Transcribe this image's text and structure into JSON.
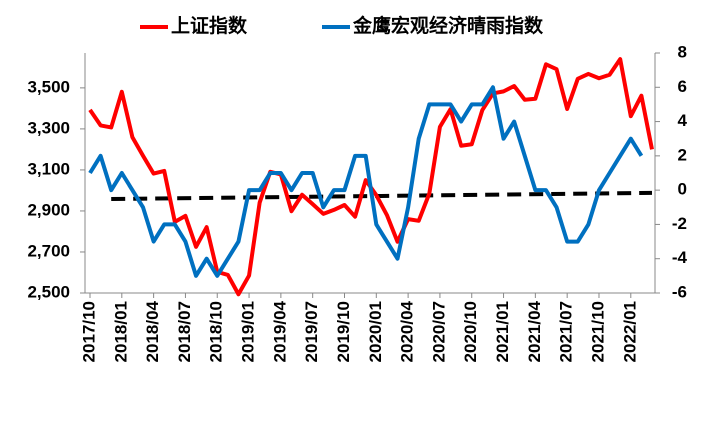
{
  "chart_data": {
    "type": "line",
    "categories": [
      "2017/10",
      null,
      null,
      "2018/01",
      null,
      null,
      "2018/04",
      null,
      null,
      "2018/07",
      null,
      null,
      "2018/10",
      null,
      null,
      "2019/01",
      null,
      null,
      "2019/04",
      null,
      null,
      "2019/07",
      null,
      null,
      "2019/10",
      null,
      null,
      "2020/01",
      null,
      null,
      "2020/04",
      null,
      null,
      "2020/07",
      null,
      null,
      "2020/10",
      null,
      null,
      "2021/01",
      null,
      null,
      "2021/04",
      null,
      null,
      "2021/07",
      null,
      null,
      "2021/10",
      null,
      null,
      "2022/01",
      null,
      null
    ],
    "series": [
      {
        "name": "上证指数",
        "color": "#ff0000",
        "axis": "y",
        "values": [
          3393,
          3317,
          3307,
          3481,
          3259,
          3169,
          3082,
          3095,
          2847,
          2876,
          2725,
          2821,
          2603,
          2588,
          2494,
          2585,
          2941,
          3091,
          3078,
          2899,
          2979,
          2933,
          2886,
          2905,
          2929,
          2872,
          3050,
          2977,
          2880,
          2750,
          2860,
          2852,
          2985,
          3310,
          3396,
          3218,
          3225,
          3392,
          3473,
          3483,
          3509,
          3442,
          3447,
          3615,
          3591,
          3397,
          3544,
          3568,
          3547,
          3564,
          3640,
          3362,
          3462,
          3200
        ]
      },
      {
        "name": "金鹰宏观经济晴雨指数",
        "color": "#0070c0",
        "axis": "y2",
        "values": [
          1,
          2,
          0,
          1,
          0,
          -1,
          -3,
          -2,
          -2,
          -3,
          -5,
          -4,
          -5,
          -4,
          -3,
          0,
          0,
          1,
          1,
          0,
          1,
          1,
          -1,
          0,
          0,
          2,
          2,
          -2,
          -3,
          -4,
          -1,
          3,
          5,
          5,
          5,
          4,
          5,
          5,
          6,
          3,
          4,
          2,
          0,
          0,
          -1,
          -3,
          -3,
          -2,
          0,
          1,
          2,
          3,
          2,
          null
        ]
      }
    ],
    "trend": {
      "x": [
        "2017/12",
        "2022/03"
      ],
      "values": [
        2958,
        2988
      ],
      "color": "#000000",
      "dashed": true
    },
    "ylim": [
      2500,
      3670
    ],
    "yticks": [
      {
        "value": 2500,
        "label": "2,500"
      },
      {
        "value": 2700,
        "label": "2,700"
      },
      {
        "value": 2900,
        "label": "2,900"
      },
      {
        "value": 3100,
        "label": "3,100"
      },
      {
        "value": 3300,
        "label": "3,300"
      },
      {
        "value": 3500,
        "label": "3,500"
      }
    ],
    "y2lim": [
      -6,
      8
    ],
    "y2ticks": [
      -6,
      -4,
      -2,
      0,
      2,
      4,
      6,
      8
    ],
    "legend": "top"
  }
}
